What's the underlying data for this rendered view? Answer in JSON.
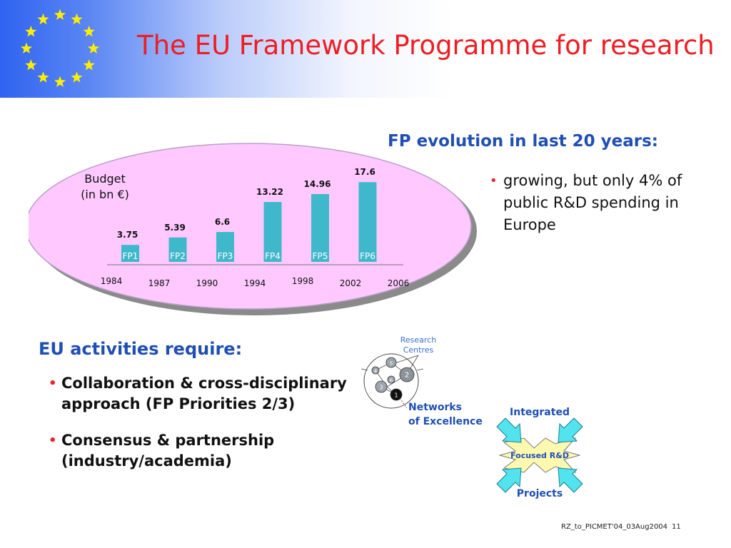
{
  "slide": {
    "title": "The EU Framework Programme for research",
    "footer_ref": "RZ_to_PICMET'04_03Aug2004",
    "page_number": "11"
  },
  "colors": {
    "title": "#ee1d23",
    "heading": "#1f4fb4",
    "bar": "#3fb8cc",
    "ellipse": "#ffc9ff",
    "flag_star": "#ffed00",
    "bullet": "#e8212a"
  },
  "fp_evolution": {
    "heading": "FP evolution in last 20 years:",
    "bullets": [
      "growing, but only 4% of public R&D spending in Europe"
    ]
  },
  "chart_data": {
    "type": "bar",
    "categories": [
      "FP1",
      "FP2",
      "FP3",
      "FP4",
      "FP5",
      "FP6"
    ],
    "values": [
      3.75,
      5.39,
      6.6,
      13.22,
      14.96,
      17.6
    ],
    "value_labels": [
      "3.75",
      "5.39",
      "6.6",
      "13.22",
      "14.96",
      "17.6"
    ],
    "ylabel": "Budget\n(in bn €)",
    "ylabel_lines": [
      "Budget",
      "(in bn €)"
    ],
    "x_ticks": [
      "1984",
      "1987",
      "1990",
      "1994",
      "1998",
      "2002",
      "2006"
    ],
    "ylim": [
      0,
      20
    ],
    "grid": false,
    "legend": "none"
  },
  "activities": {
    "heading": "EU activities require:",
    "bullets": [
      "Collaboration & cross-disciplinary approach (FP Priorities 2/3)",
      "Consensus & partnership (industry/academia)"
    ]
  },
  "instruments_diagram": {
    "research_centres_label": "Research Centres",
    "research_centres_lines": [
      "Research",
      "Centres"
    ],
    "nodes": [
      "5",
      "4",
      "6",
      "2",
      "3",
      "1"
    ],
    "networks_label_lines": [
      "Networks",
      "of Excellence"
    ],
    "integrated_label": "Integrated",
    "focus_label": "Focused R&D",
    "projects_label": "Projects"
  }
}
